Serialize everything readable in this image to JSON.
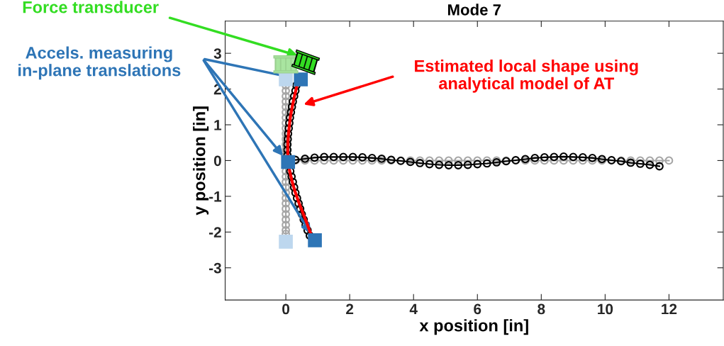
{
  "chart_data": {
    "type": "scatter",
    "title": "Mode 7",
    "xlabel": "x position [in]",
    "ylabel": "y position [in]",
    "xlim": [
      -1.9,
      13.7
    ],
    "ylim": [
      -3.9,
      3.9
    ],
    "xticks": [
      0,
      2,
      4,
      6,
      8,
      10,
      12
    ],
    "yticks": [
      -3,
      -2,
      -1,
      0,
      1,
      2,
      3
    ],
    "grid": false,
    "legend": false,
    "series": [
      {
        "type": "line",
        "marker": "circle",
        "color": "#a6a6a6",
        "x": [
          0,
          0,
          0,
          0,
          0,
          0,
          0,
          0,
          0,
          0,
          0,
          0,
          0,
          0,
          0,
          0,
          0,
          0,
          0,
          0,
          0,
          0,
          0,
          0,
          0,
          0,
          0,
          null,
          0.3,
          0.6,
          0.9,
          1.2,
          1.5,
          1.8,
          2.1,
          2.4,
          2.7,
          3.0,
          3.3,
          3.6,
          3.9,
          4.2,
          4.5,
          4.8,
          5.1,
          5.4,
          5.7,
          6.0,
          6.3,
          6.6,
          6.9,
          7.2,
          7.5,
          7.8,
          8.1,
          8.4,
          8.7,
          9.0,
          9.3,
          9.6,
          9.9,
          10.2,
          10.5,
          10.8,
          11.1,
          11.4,
          11.7,
          12.0
        ],
        "values": [
          2.1,
          1.95,
          1.8,
          1.65,
          1.5,
          1.35,
          1.2,
          1.05,
          0.9,
          0.75,
          0.6,
          0.45,
          0.3,
          0.15,
          -0.3,
          -0.45,
          -0.6,
          -0.75,
          -0.9,
          -1.05,
          -1.2,
          -1.35,
          -1.5,
          -1.65,
          -1.8,
          -1.95,
          -2.05,
          null,
          0,
          0,
          0,
          0,
          0,
          0,
          0,
          0,
          0,
          0,
          0,
          0,
          0,
          0,
          0,
          0,
          0,
          0,
          0,
          0,
          0,
          0,
          0,
          0,
          0,
          0,
          0,
          0,
          0,
          0,
          0,
          0,
          0,
          0,
          0,
          0,
          0,
          0,
          0,
          0
        ]
      },
      {
        "type": "line",
        "marker": "circle",
        "color": "#000000",
        "x": [
          0.33,
          0.3,
          0.26,
          0.22,
          0.19,
          0.16,
          0.13,
          0.11,
          0.09,
          0.07,
          0.06,
          0.05,
          0.05,
          0.05,
          0.14,
          0.18,
          0.22,
          0.26,
          0.3,
          0.35,
          0.4,
          0.45,
          0.5,
          0.56,
          0.62,
          0.68,
          0.75,
          null,
          0.3,
          0.6,
          0.9,
          1.2,
          1.5,
          1.8,
          2.1,
          2.4,
          2.7,
          3.0,
          3.3,
          3.6,
          3.9,
          4.2,
          4.5,
          4.8,
          5.1,
          5.4,
          5.7,
          6.0,
          6.3,
          6.6,
          6.9,
          7.2,
          7.5,
          7.8,
          8.1,
          8.4,
          8.7,
          9.0,
          9.3,
          9.6,
          9.9,
          10.2,
          10.5,
          10.8,
          11.1,
          11.4,
          11.7
        ],
        "values": [
          2.1,
          1.95,
          1.8,
          1.65,
          1.5,
          1.35,
          1.2,
          1.05,
          0.9,
          0.75,
          0.6,
          0.45,
          0.3,
          0.15,
          -0.3,
          -0.45,
          -0.6,
          -0.75,
          -0.9,
          -1.05,
          -1.2,
          -1.35,
          -1.5,
          -1.65,
          -1.8,
          -1.95,
          -2.1,
          null,
          0.02,
          0.05,
          0.08,
          0.1,
          0.1,
          0.1,
          0.1,
          0.09,
          0.07,
          0.05,
          0.02,
          -0.01,
          -0.04,
          -0.07,
          -0.1,
          -0.12,
          -0.13,
          -0.13,
          -0.12,
          -0.1,
          -0.08,
          -0.05,
          -0.02,
          0.01,
          0.04,
          0.07,
          0.09,
          0.1,
          0.11,
          0.1,
          0.09,
          0.07,
          0.04,
          0.01,
          -0.02,
          -0.06,
          -0.09,
          -0.12,
          -0.16
        ]
      },
      {
        "type": "line",
        "marker": "none",
        "color": "#ff0000",
        "x": [
          0.35,
          0.27,
          0.2,
          0.14,
          0.1,
          0.07,
          0.06,
          0.07,
          0.12,
          0.2,
          0.3,
          0.42,
          0.55,
          0.68,
          0.8
        ],
        "values": [
          2.1,
          1.8,
          1.5,
          1.2,
          0.9,
          0.6,
          0.3,
          0.0,
          -0.3,
          -0.6,
          -0.9,
          -1.2,
          -1.5,
          -1.8,
          -2.1
        ]
      },
      {
        "marker": "square",
        "color": "#2e75b6",
        "x": [
          0.47,
          0.07,
          0.91
        ],
        "values": [
          2.27,
          -0.04,
          -2.23
        ]
      },
      {
        "marker": "square",
        "color": "#bdd7ee",
        "x": [
          0,
          0
        ],
        "values": [
          2.27,
          -2.27
        ]
      }
    ],
    "annotations": [
      "Force transducer",
      "Accels. measuring\nin-plane translations",
      "Estimated local shape using\nanalytical model of AT"
    ]
  }
}
